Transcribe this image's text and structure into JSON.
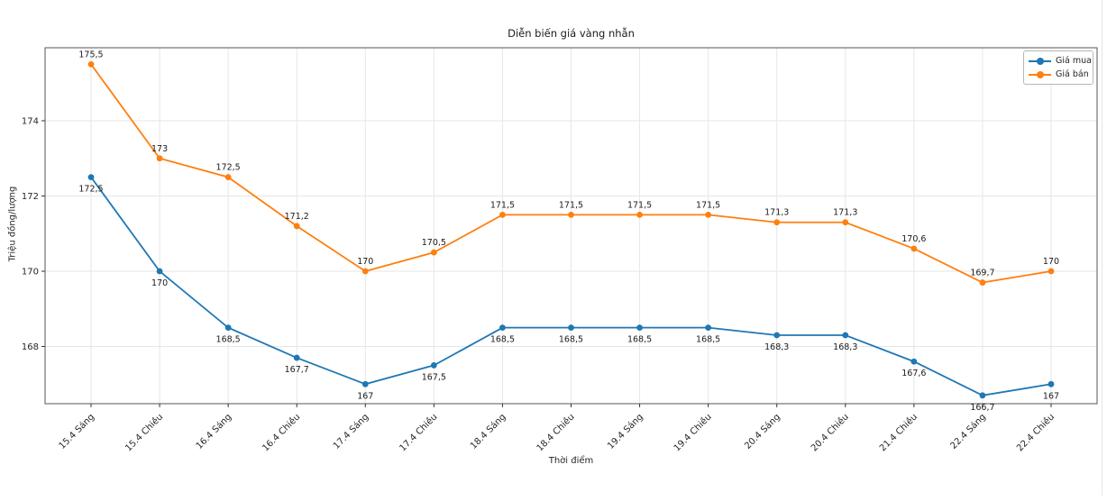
{
  "chart_data": {
    "type": "line",
    "title": "Diễn biến giá vàng nhẫn",
    "xlabel": "Thời điểm",
    "ylabel": "Triệu đồng/lượng",
    "categories": [
      "15.4 Sáng",
      "15.4 Chiều",
      "16.4 Sáng",
      "16.4 Chiều",
      "17.4 Sáng",
      "17.4 Chiều",
      "18.4 Sáng",
      "18.4 Chiều",
      "19.4 Sáng",
      "19.4 Chiều",
      "20.4 Sáng",
      "20.4 Chiều",
      "21.4 Chiều",
      "22.4 Sáng",
      "22.4 Chiều"
    ],
    "series": [
      {
        "name": "Giá mua",
        "color": "#1f77b4",
        "values": [
          172.5,
          170,
          168.5,
          167.7,
          167,
          167.5,
          168.5,
          168.5,
          168.5,
          168.5,
          168.3,
          168.3,
          167.6,
          166.7,
          167
        ],
        "label_position": "below"
      },
      {
        "name": "Giá bán",
        "color": "#ff7f0e",
        "values": [
          175.5,
          173,
          172.5,
          171.2,
          170,
          170.5,
          171.5,
          171.5,
          171.5,
          171.5,
          171.3,
          171.3,
          170.6,
          169.7,
          170
        ],
        "label_position": "above"
      }
    ],
    "yticks": [
      168,
      170,
      172,
      174
    ],
    "ylim": [
      166.48,
      175.94
    ],
    "grid": true,
    "legend_position": "upper right",
    "decimal_separator": ",",
    "marker": "circle",
    "colors": {
      "grid": "#e6e6e6",
      "spine": "#555555",
      "tick": "#333333",
      "text": "#262626",
      "background": "#ffffff"
    }
  }
}
